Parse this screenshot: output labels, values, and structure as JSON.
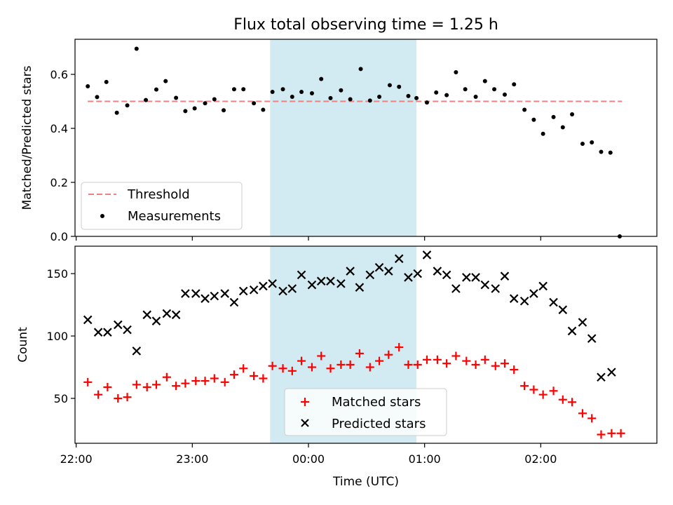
{
  "chart_data": {
    "type": "scatter",
    "title": "Flux total observing time = 1.25 h",
    "xlabel": "Time (UTC)",
    "x_unit": "hours (22:00 = 22, 02:00 next day = 26)",
    "xlim": [
      21.99,
      27.0
    ],
    "x_ticks": [
      {
        "value": 22,
        "label": "22:00"
      },
      {
        "value": 23,
        "label": "23:00"
      },
      {
        "value": 24,
        "label": "00:00"
      },
      {
        "value": 25,
        "label": "01:00"
      },
      {
        "value": 26,
        "label": "02:00"
      }
    ],
    "highlight_band": {
      "x_start": 23.67,
      "x_end": 24.93,
      "color": "#add8e6"
    },
    "panels": [
      {
        "name": "ratio",
        "ylabel": "Matched/Predicted stars",
        "ylim": [
          0,
          0.73
        ],
        "y_ticks": [
          "0.0",
          "0.2",
          "0.4",
          "0.6"
        ],
        "y_tick_values": [
          0,
          0.2,
          0.4,
          0.6
        ],
        "threshold": {
          "label": "Threshold",
          "value": 0.5,
          "x_start": 22.1,
          "x_end": 26.7,
          "color": "#f08080"
        },
        "series": [
          {
            "name": "Measurements",
            "marker": "dot",
            "color": "#000000",
            "x": [
              22.1,
              22.18,
              22.26,
              22.35,
              22.44,
              22.52,
              22.6,
              22.69,
              22.77,
              22.86,
              22.94,
              23.02,
              23.11,
              23.19,
              23.27,
              23.36,
              23.44,
              23.53,
              23.61,
              23.69,
              23.78,
              23.86,
              23.94,
              24.03,
              24.11,
              24.19,
              24.28,
              24.36,
              24.45,
              24.53,
              24.61,
              24.7,
              24.78,
              24.86,
              24.93,
              25.02,
              25.1,
              25.19,
              25.27,
              25.35,
              25.44,
              25.52,
              25.6,
              25.69,
              25.77,
              25.86,
              25.94,
              26.02,
              26.11,
              26.19,
              26.27,
              26.36,
              26.44,
              26.52,
              26.6,
              26.68
            ],
            "y": [
              0.556,
              0.516,
              0.572,
              0.458,
              0.485,
              0.695,
              0.505,
              0.544,
              0.575,
              0.513,
              0.464,
              0.474,
              0.493,
              0.508,
              0.467,
              0.545,
              0.545,
              0.493,
              0.469,
              0.535,
              0.545,
              0.517,
              0.535,
              0.53,
              0.583,
              0.512,
              0.541,
              0.508,
              0.62,
              0.503,
              0.517,
              0.56,
              0.554,
              0.52,
              0.512,
              0.496,
              0.533,
              0.523,
              0.608,
              0.545,
              0.517,
              0.575,
              0.545,
              0.525,
              0.563,
              0.469,
              0.432,
              0.38,
              0.442,
              0.404,
              0.452,
              0.343,
              0.348,
              0.313,
              0.31,
              0.0
            ]
          }
        ]
      },
      {
        "name": "counts",
        "ylabel": "Count",
        "ylim": [
          14,
          172
        ],
        "y_ticks": [
          "50",
          "100",
          "150"
        ],
        "y_tick_values": [
          50,
          100,
          150
        ],
        "series": [
          {
            "name": "Matched stars",
            "marker": "plus",
            "color": "#ff0000",
            "x": [
              22.1,
              22.19,
              22.27,
              22.36,
              22.44,
              22.52,
              22.61,
              22.69,
              22.78,
              22.86,
              22.94,
              23.03,
              23.11,
              23.19,
              23.28,
              23.36,
              23.44,
              23.53,
              23.61,
              23.69,
              23.78,
              23.86,
              23.94,
              24.03,
              24.11,
              24.19,
              24.28,
              24.36,
              24.44,
              24.53,
              24.61,
              24.69,
              24.78,
              24.86,
              24.94,
              25.02,
              25.11,
              25.19,
              25.27,
              25.36,
              25.44,
              25.52,
              25.61,
              25.69,
              25.77,
              25.86,
              25.94,
              26.02,
              26.11,
              26.19,
              26.27,
              26.36,
              26.44,
              26.52,
              26.61,
              26.69
            ],
            "y": [
              63,
              53,
              59,
              50,
              51,
              61,
              59,
              61,
              67,
              60,
              62,
              64,
              64,
              66,
              63,
              69,
              74,
              68,
              66,
              76,
              74,
              72,
              80,
              75,
              84,
              74,
              77,
              77,
              86,
              75,
              80,
              85,
              91,
              77,
              77,
              81,
              81,
              78,
              84,
              80,
              77,
              81,
              76,
              78,
              73,
              60,
              57,
              53,
              56,
              49,
              47,
              38,
              34,
              21,
              22,
              22
            ]
          },
          {
            "name": "Predicted stars",
            "marker": "x",
            "color": "#000000",
            "x": [
              22.1,
              22.19,
              22.27,
              22.36,
              22.44,
              22.52,
              22.61,
              22.69,
              22.78,
              22.86,
              22.94,
              23.03,
              23.11,
              23.19,
              23.28,
              23.36,
              23.44,
              23.53,
              23.61,
              23.69,
              23.78,
              23.86,
              23.94,
              24.03,
              24.11,
              24.19,
              24.28,
              24.36,
              24.44,
              24.53,
              24.61,
              24.69,
              24.78,
              24.86,
              24.94,
              25.02,
              25.11,
              25.19,
              25.27,
              25.36,
              25.44,
              25.52,
              25.61,
              25.69,
              25.77,
              25.86,
              25.94,
              26.02,
              26.11,
              26.19,
              26.27,
              26.36,
              26.44,
              26.52,
              26.61
            ],
            "y": [
              113,
              103,
              103,
              109,
              105,
              88,
              117,
              112,
              118,
              117,
              134,
              134,
              130,
              132,
              134,
              127,
              136,
              137,
              140,
              142,
              136,
              138,
              149,
              141,
              144,
              144,
              142,
              152,
              139,
              149,
              155,
              152,
              162,
              147,
              150,
              165,
              152,
              149,
              138,
              147,
              147,
              141,
              138,
              148,
              130,
              128,
              134,
              140,
              127,
              121,
              104,
              111,
              98,
              67,
              71
            ]
          }
        ]
      }
    ]
  }
}
